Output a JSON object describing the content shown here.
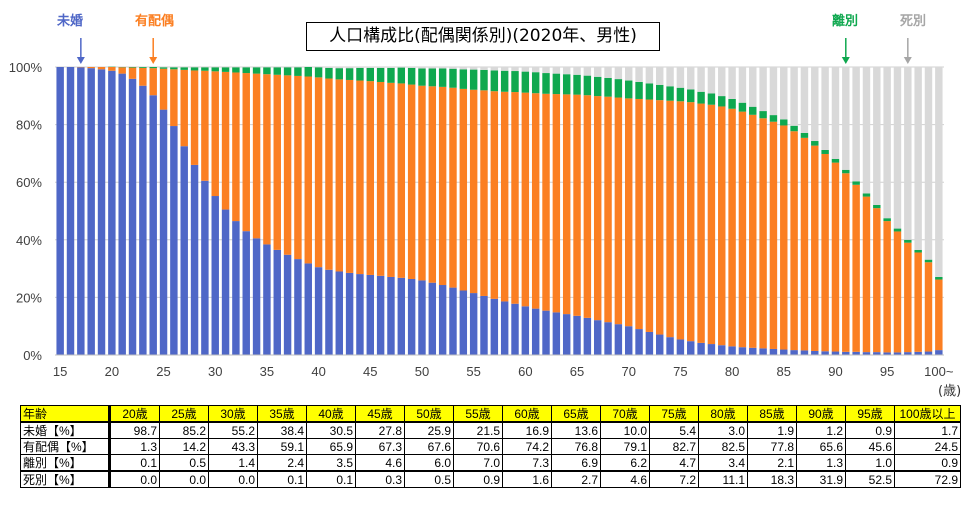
{
  "chart_data": {
    "type": "bar",
    "stacked": true,
    "title": "人口構成比(配偶関係別)(2020年、男性)",
    "xlabel": "(歳)",
    "ylabel": "",
    "ylim": [
      0,
      100
    ],
    "y_ticks": [
      "0%",
      "20%",
      "40%",
      "60%",
      "80%",
      "100%"
    ],
    "x_ticks": [
      "15",
      "20",
      "25",
      "30",
      "35",
      "40",
      "45",
      "50",
      "55",
      "60",
      "65",
      "70",
      "75",
      "80",
      "85",
      "90",
      "95",
      "100~"
    ],
    "x_start": 15,
    "x_end": 100,
    "grid": true,
    "annotations": [
      {
        "label": "未婚",
        "color": "#4f67c7"
      },
      {
        "label": "有配偶",
        "color": "#fb7f22"
      },
      {
        "label": "離別",
        "color": "#0fa84f"
      },
      {
        "label": "死別",
        "color": "#a6a6a6"
      }
    ],
    "series": [
      {
        "name": "未婚",
        "color": "#4f67c7",
        "values": [
          100,
          100,
          99.9,
          99.6,
          99.2,
          98.7,
          97.7,
          95.9,
          93.5,
          90.2,
          85.2,
          79.5,
          72.5,
          66,
          60.5,
          55.2,
          50.5,
          46.5,
          43,
          40.5,
          38.4,
          36.5,
          34.8,
          33.3,
          31.8,
          30.5,
          29.6,
          29,
          28.5,
          28.1,
          27.8,
          27.5,
          27.1,
          26.8,
          26.4,
          25.9,
          25.1,
          24.3,
          23.4,
          22.4,
          21.5,
          20.5,
          19.5,
          18.6,
          17.8,
          16.9,
          16.1,
          15.4,
          14.8,
          14.2,
          13.6,
          12.9,
          12.1,
          11.4,
          10.7,
          10.0,
          9.0,
          8.0,
          7.1,
          6.2,
          5.4,
          4.8,
          4.2,
          3.8,
          3.4,
          3.0,
          2.7,
          2.5,
          2.3,
          2.1,
          1.9,
          1.7,
          1.6,
          1.4,
          1.3,
          1.2,
          1.1,
          1.1,
          1.0,
          1.0,
          0.9,
          0.9,
          1.0,
          1.1,
          1.2,
          1.7
        ]
      },
      {
        "name": "有配偶",
        "color": "#fb7f22",
        "values": [
          0,
          0,
          0.1,
          0.4,
          0.8,
          1.3,
          2.2,
          3.9,
          6.2,
          9.4,
          14.2,
          19.7,
          26.5,
          32.8,
          38.2,
          43.3,
          47.8,
          51.6,
          54.9,
          57.2,
          59.1,
          60.8,
          62.3,
          63.6,
          64.9,
          65.9,
          66.4,
          66.7,
          67,
          67.2,
          67.3,
          67.3,
          67.4,
          67.5,
          67.5,
          67.6,
          68.2,
          68.8,
          69.4,
          70,
          70.6,
          71.4,
          72.1,
          72.8,
          73.5,
          74.2,
          74.8,
          75.3,
          75.8,
          76.3,
          76.8,
          77.3,
          77.8,
          78.3,
          78.7,
          79.1,
          79.9,
          80.7,
          81.4,
          82.1,
          82.7,
          83,
          83.1,
          83.1,
          82.9,
          82.5,
          81.8,
          80.9,
          79.9,
          78.9,
          77.8,
          76,
          73.8,
          71.3,
          68.5,
          65.6,
          62,
          58,
          54,
          50,
          45.6,
          42,
          38,
          34.5,
          31,
          24.5
        ]
      },
      {
        "name": "離別",
        "color": "#0fa84f",
        "values": [
          0,
          0,
          0,
          0,
          0,
          0.1,
          0.1,
          0.2,
          0.3,
          0.4,
          0.5,
          0.7,
          0.9,
          1.1,
          1.2,
          1.4,
          1.6,
          1.8,
          2,
          2.2,
          2.4,
          2.6,
          2.8,
          3,
          3.3,
          3.5,
          3.7,
          3.9,
          4.1,
          4.4,
          4.6,
          4.9,
          5.2,
          5.5,
          5.8,
          6,
          6.2,
          6.4,
          6.6,
          6.8,
          7,
          7.1,
          7.2,
          7.3,
          7.3,
          7.3,
          7.3,
          7.2,
          7.1,
          7,
          6.9,
          6.8,
          6.7,
          6.5,
          6.4,
          6.2,
          5.9,
          5.6,
          5.3,
          5,
          4.7,
          4.4,
          4.1,
          3.9,
          3.6,
          3.4,
          3.1,
          2.8,
          2.5,
          2.3,
          2.1,
          1.9,
          1.7,
          1.6,
          1.4,
          1.3,
          1.2,
          1.2,
          1.1,
          1.1,
          1,
          1,
          1,
          0.9,
          0.9,
          0.9
        ]
      },
      {
        "name": "死別",
        "color": "#d9d9d9",
        "values": "remainder"
      }
    ]
  },
  "table": {
    "corner": "年齢",
    "columns": [
      "20歳",
      "25歳",
      "30歳",
      "35歳",
      "40歳",
      "45歳",
      "50歳",
      "55歳",
      "60歳",
      "65歳",
      "70歳",
      "75歳",
      "80歳",
      "85歳",
      "90歳",
      "95歳",
      "100歳以上"
    ],
    "rows": [
      {
        "label": "未婚【%】",
        "values": [
          "98.7",
          "85.2",
          "55.2",
          "38.4",
          "30.5",
          "27.8",
          "25.9",
          "21.5",
          "16.9",
          "13.6",
          "10.0",
          "5.4",
          "3.0",
          "1.9",
          "1.2",
          "0.9",
          "1.7"
        ]
      },
      {
        "label": "有配偶【%】",
        "values": [
          "1.3",
          "14.2",
          "43.3",
          "59.1",
          "65.9",
          "67.3",
          "67.6",
          "70.6",
          "74.2",
          "76.8",
          "79.1",
          "82.7",
          "82.5",
          "77.8",
          "65.6",
          "45.6",
          "24.5"
        ]
      },
      {
        "label": "離別【%】",
        "values": [
          "0.1",
          "0.5",
          "1.4",
          "2.4",
          "3.5",
          "4.6",
          "6.0",
          "7.0",
          "7.3",
          "6.9",
          "6.2",
          "4.7",
          "3.4",
          "2.1",
          "1.3",
          "1.0",
          "0.9"
        ]
      },
      {
        "label": "死別【%】",
        "values": [
          "0.0",
          "0.0",
          "0.0",
          "0.1",
          "0.1",
          "0.3",
          "0.5",
          "0.9",
          "1.6",
          "2.7",
          "4.6",
          "7.2",
          "11.1",
          "18.3",
          "31.9",
          "52.5",
          "72.9"
        ]
      }
    ]
  }
}
